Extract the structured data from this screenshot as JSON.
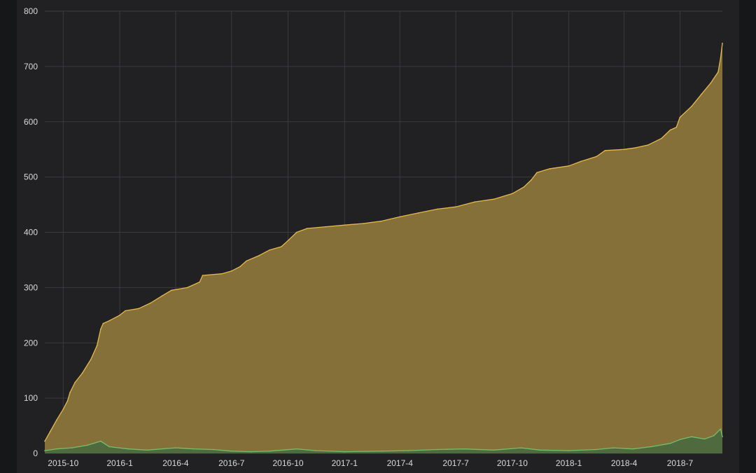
{
  "theme": {
    "background": "#161719",
    "panel": "#212124",
    "grid": "#3a3a3f",
    "text": "#d8d9da"
  },
  "chart_data": {
    "type": "area",
    "title": "",
    "xlabel": "",
    "ylabel": "",
    "ylim": [
      0,
      800
    ],
    "xlim": [
      "2015-09-01",
      "2018-09-08"
    ],
    "y_ticks": [
      "0",
      "100",
      "200",
      "300",
      "400",
      "500",
      "600",
      "700",
      "800"
    ],
    "x_ticks": [
      {
        "date": "2015-10-01",
        "label": "2015-10"
      },
      {
        "date": "2016-01-01",
        "label": "2016-1"
      },
      {
        "date": "2016-04-01",
        "label": "2016-4"
      },
      {
        "date": "2016-07-01",
        "label": "2016-7"
      },
      {
        "date": "2016-10-01",
        "label": "2016-10"
      },
      {
        "date": "2017-01-01",
        "label": "2017-1"
      },
      {
        "date": "2017-04-01",
        "label": "2017-4"
      },
      {
        "date": "2017-07-01",
        "label": "2017-7"
      },
      {
        "date": "2017-10-01",
        "label": "2017-10"
      },
      {
        "date": "2018-01-01",
        "label": "2018-1"
      },
      {
        "date": "2018-04-01",
        "label": "2018-4"
      },
      {
        "date": "2018-07-01",
        "label": "2018-7"
      }
    ],
    "grid": true,
    "legend": "none",
    "series": [
      {
        "color": "#e5b94a",
        "fill": "#86703a",
        "points": [
          [
            "2015-09-01",
            22
          ],
          [
            "2015-09-10",
            40
          ],
          [
            "2015-09-20",
            60
          ],
          [
            "2015-10-01",
            80
          ],
          [
            "2015-10-08",
            95
          ],
          [
            "2015-10-12",
            110
          ],
          [
            "2015-10-20",
            128
          ],
          [
            "2015-11-01",
            145
          ],
          [
            "2015-11-15",
            170
          ],
          [
            "2015-11-25",
            195
          ],
          [
            "2015-12-01",
            225
          ],
          [
            "2015-12-05",
            235
          ],
          [
            "2015-12-15",
            240
          ],
          [
            "2016-01-01",
            250
          ],
          [
            "2016-01-10",
            258
          ],
          [
            "2016-02-01",
            262
          ],
          [
            "2016-02-20",
            272
          ],
          [
            "2016-03-10",
            285
          ],
          [
            "2016-03-25",
            295
          ],
          [
            "2016-04-20",
            300
          ],
          [
            "2016-05-10",
            310
          ],
          [
            "2016-05-15",
            322
          ],
          [
            "2016-06-15",
            325
          ],
          [
            "2016-07-01",
            330
          ],
          [
            "2016-07-15",
            338
          ],
          [
            "2016-07-25",
            348
          ],
          [
            "2016-08-15",
            358
          ],
          [
            "2016-09-01",
            368
          ],
          [
            "2016-09-20",
            374
          ],
          [
            "2016-10-01",
            385
          ],
          [
            "2016-10-15",
            400
          ],
          [
            "2016-11-01",
            407
          ],
          [
            "2016-12-01",
            410
          ],
          [
            "2017-01-01",
            413
          ],
          [
            "2017-02-01",
            416
          ],
          [
            "2017-03-01",
            420
          ],
          [
            "2017-04-01",
            428
          ],
          [
            "2017-05-01",
            435
          ],
          [
            "2017-06-01",
            442
          ],
          [
            "2017-07-01",
            446
          ],
          [
            "2017-08-01",
            455
          ],
          [
            "2017-09-01",
            460
          ],
          [
            "2017-10-01",
            470
          ],
          [
            "2017-10-20",
            482
          ],
          [
            "2017-11-01",
            495
          ],
          [
            "2017-11-10",
            508
          ],
          [
            "2017-12-01",
            515
          ],
          [
            "2018-01-01",
            520
          ],
          [
            "2018-01-20",
            528
          ],
          [
            "2018-02-15",
            537
          ],
          [
            "2018-03-01",
            548
          ],
          [
            "2018-04-01",
            550
          ],
          [
            "2018-04-20",
            553
          ],
          [
            "2018-05-10",
            558
          ],
          [
            "2018-06-01",
            570
          ],
          [
            "2018-06-15",
            585
          ],
          [
            "2018-06-25",
            590
          ],
          [
            "2018-07-01",
            608
          ],
          [
            "2018-07-20",
            628
          ],
          [
            "2018-08-05",
            650
          ],
          [
            "2018-08-20",
            670
          ],
          [
            "2018-09-01",
            690
          ],
          [
            "2018-09-05",
            715
          ],
          [
            "2018-09-08",
            742
          ]
        ]
      },
      {
        "color": "#73bf69",
        "fill": "#4f6a3e",
        "points": [
          [
            "2015-09-01",
            5
          ],
          [
            "2015-09-20",
            8
          ],
          [
            "2015-10-15",
            10
          ],
          [
            "2015-11-10",
            15
          ],
          [
            "2015-12-01",
            22
          ],
          [
            "2015-12-15",
            12
          ],
          [
            "2016-01-15",
            8
          ],
          [
            "2016-02-15",
            6
          ],
          [
            "2016-04-01",
            10
          ],
          [
            "2016-05-01",
            8
          ],
          [
            "2016-06-01",
            7
          ],
          [
            "2016-07-01",
            4
          ],
          [
            "2016-08-01",
            3
          ],
          [
            "2016-09-01",
            4
          ],
          [
            "2016-10-15",
            8
          ],
          [
            "2016-11-15",
            5
          ],
          [
            "2017-01-01",
            3
          ],
          [
            "2017-03-01",
            4
          ],
          [
            "2017-04-15",
            5
          ],
          [
            "2017-06-01",
            7
          ],
          [
            "2017-07-15",
            8
          ],
          [
            "2017-09-01",
            6
          ],
          [
            "2017-10-15",
            10
          ],
          [
            "2017-11-15",
            6
          ],
          [
            "2018-01-01",
            5
          ],
          [
            "2018-02-15",
            7
          ],
          [
            "2018-03-15",
            10
          ],
          [
            "2018-04-15",
            8
          ],
          [
            "2018-05-15",
            12
          ],
          [
            "2018-06-15",
            18
          ],
          [
            "2018-07-01",
            25
          ],
          [
            "2018-07-20",
            30
          ],
          [
            "2018-08-10",
            26
          ],
          [
            "2018-08-25",
            32
          ],
          [
            "2018-09-05",
            44
          ],
          [
            "2018-09-08",
            30
          ]
        ]
      }
    ]
  }
}
